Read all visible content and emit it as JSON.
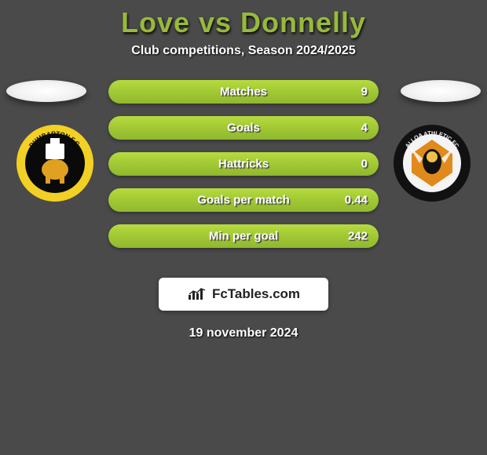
{
  "header": {
    "title": "Love vs Donnelly",
    "subtitle": "Club competitions, Season 2024/2025"
  },
  "players": {
    "left": {
      "badge_name": "dumbarton-fc-badge",
      "ring_color": "#f2d024",
      "inner_color": "#0a0a0a",
      "accent_color": "#ffffff",
      "motif_color": "#e0a020",
      "text_color": "#f2d024",
      "ring_text": "DUMBARTON F.C."
    },
    "right": {
      "badge_name": "alloa-athletic-badge",
      "ring_color": "#111111",
      "inner_color": "#f4f4f4",
      "accent_color": "#e08a1b",
      "motif_color": "#111111",
      "text_color": "#f4f4f4",
      "ring_text": "ALLOA ATHLETIC FC"
    }
  },
  "stats": [
    {
      "label": "Matches",
      "value": "9",
      "fill_pct": 100
    },
    {
      "label": "Goals",
      "value": "4",
      "fill_pct": 100
    },
    {
      "label": "Hattricks",
      "value": "0",
      "fill_pct": 100
    },
    {
      "label": "Goals per match",
      "value": "0.44",
      "fill_pct": 100
    },
    {
      "label": "Min per goal",
      "value": "242",
      "fill_pct": 100
    }
  ],
  "branding": {
    "text": "FcTables.com"
  },
  "date": "19 november 2024",
  "colors": {
    "bg": "#4a4a4a",
    "title": "#98b93a",
    "bar_top": "#b7db3f",
    "bar_mid": "#a2c934",
    "bar_bot": "#8fb82e"
  }
}
